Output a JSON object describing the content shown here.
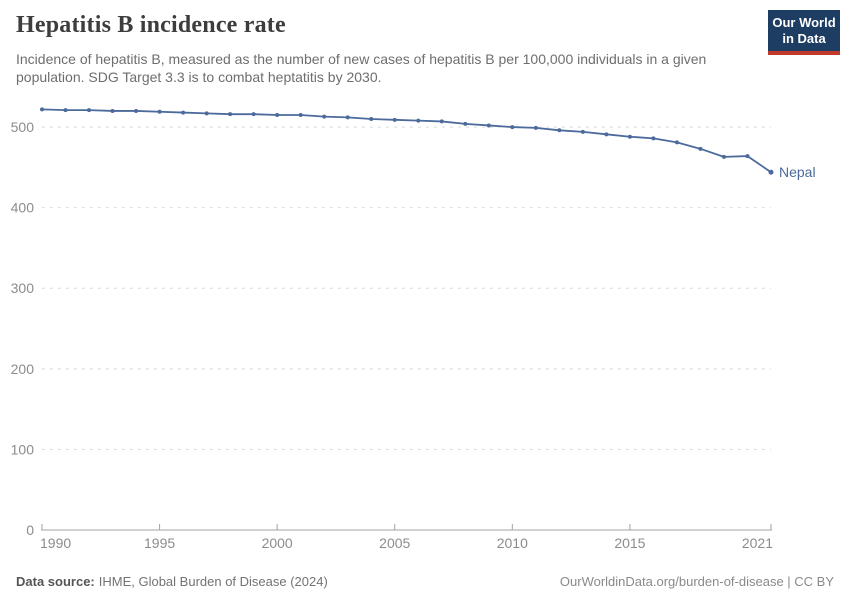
{
  "header": {
    "title": "Hepatitis B incidence rate",
    "subtitle": "Incidence of hepatitis B, measured as the number of new cases of hepatitis B per 100,000 individuals in a given population. SDG Target 3.3 is to combat heptatitis by 2030.",
    "logo": {
      "line1": "Our World",
      "line2": "in Data",
      "bg_color": "#1D3D63",
      "bar_color": "#C0392B"
    }
  },
  "chart_data": {
    "type": "line",
    "title": "Hepatitis B incidence rate",
    "xlabel": "",
    "ylabel": "",
    "x": [
      1990,
      1991,
      1992,
      1993,
      1994,
      1995,
      1996,
      1997,
      1998,
      1999,
      2000,
      2001,
      2002,
      2003,
      2004,
      2005,
      2006,
      2007,
      2008,
      2009,
      2010,
      2011,
      2012,
      2013,
      2014,
      2015,
      2016,
      2017,
      2018,
      2019,
      2020,
      2021
    ],
    "series": [
      {
        "name": "Nepal",
        "color": "#4C6A9C",
        "values": [
          522,
          521,
          521,
          520,
          520,
          519,
          518,
          517,
          516,
          516,
          515,
          515,
          513,
          512,
          510,
          509,
          508,
          507,
          504,
          502,
          500,
          499,
          496,
          494,
          491,
          488,
          486,
          481,
          473,
          463,
          464,
          444
        ]
      }
    ],
    "xticks": [
      1990,
      1995,
      2000,
      2005,
      2010,
      2015,
      2021
    ],
    "yticks": [
      0,
      100,
      200,
      300,
      400,
      500
    ],
    "xlim": [
      1990,
      2021
    ],
    "ylim": [
      0,
      546
    ],
    "grid": "horizontal-dashed",
    "legend_position": "line-end-label"
  },
  "footer": {
    "source_label": "Data source:",
    "source_value": "IHME, Global Burden of Disease (2024)",
    "attribution": "OurWorldinData.org/burden-of-disease | CC BY"
  }
}
